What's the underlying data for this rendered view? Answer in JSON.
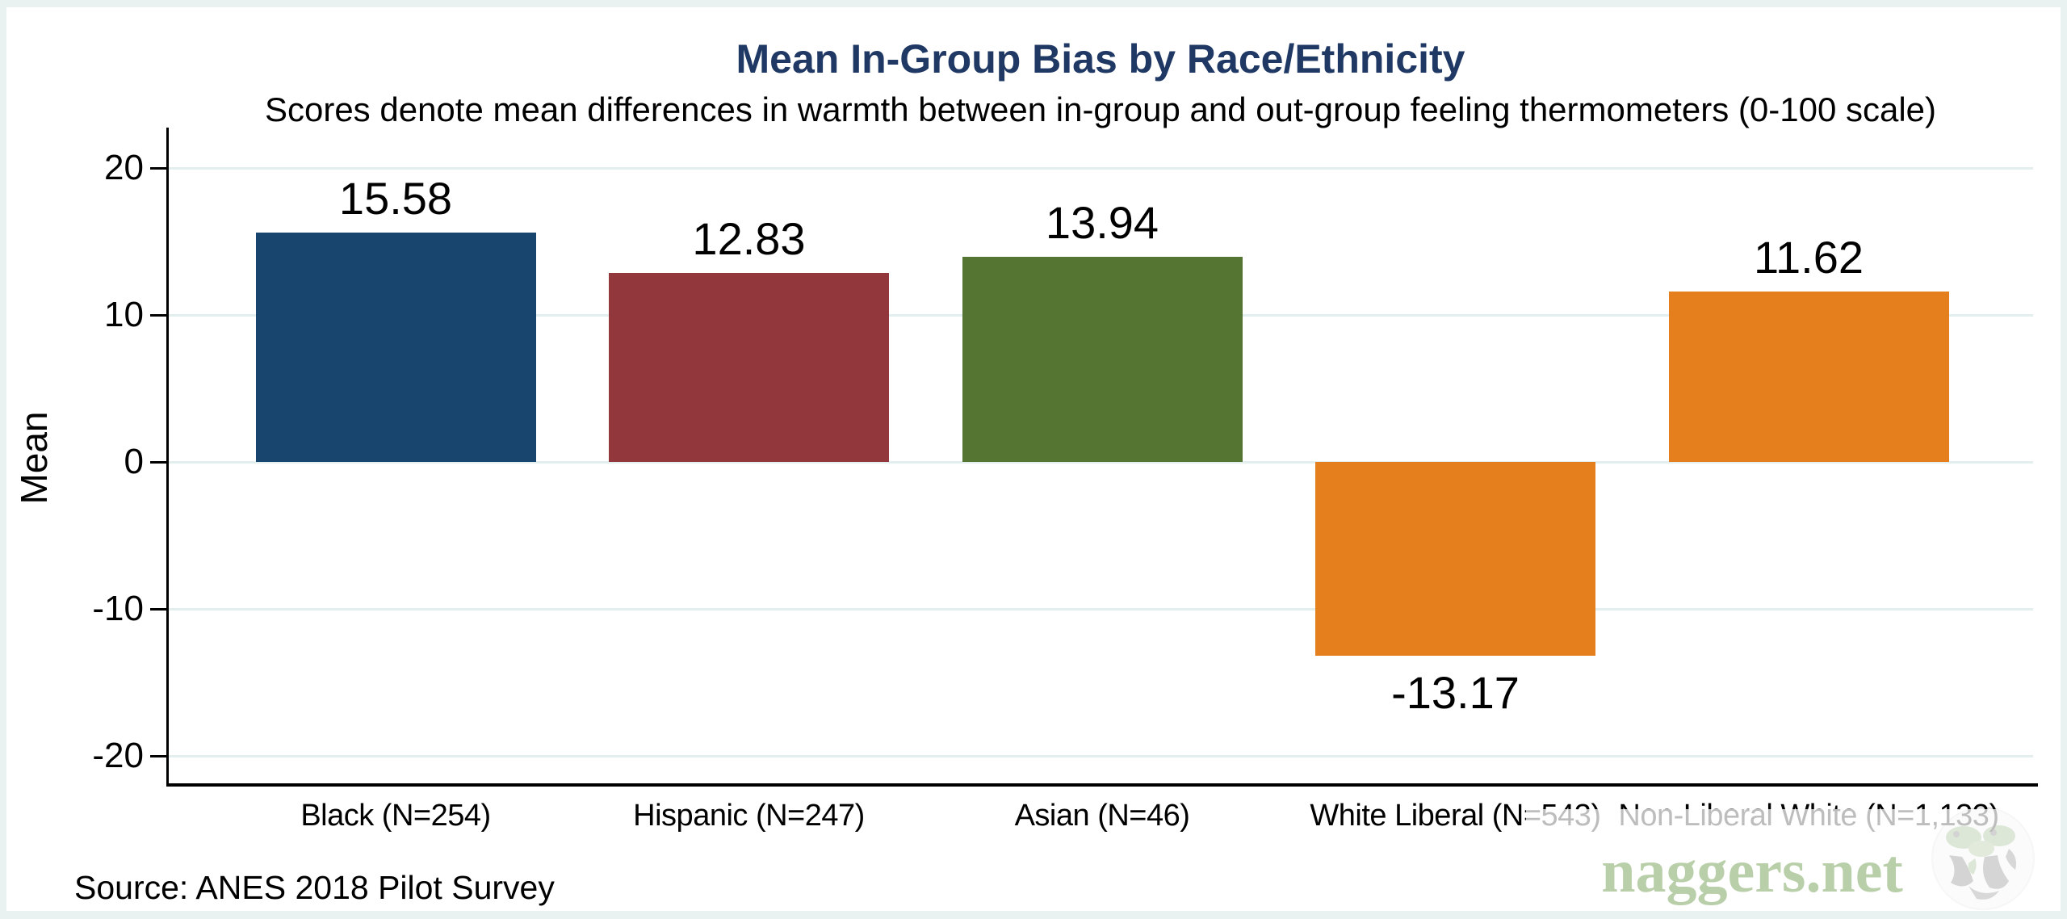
{
  "title": "Mean In-Group Bias by Race/Ethnicity",
  "subtitle": "Scores denote mean differences in warmth between in-group and out-group feeling thermometers (0-100 scale)",
  "source_note": "Source: ANES 2018 Pilot Survey",
  "watermark": {
    "text": "naggers.net",
    "logo": "naggers-globe-logo",
    "text_color": "#b9cfa9",
    "overlay_color": "rgba(255,255,255,0.74)"
  },
  "colors": {
    "background_border": "#e9f2f1",
    "plot_background": "#ffffff",
    "gridline": "#e3efee",
    "axis": "#000000",
    "title": "#1f3864",
    "text": "#000000"
  },
  "chart_data": {
    "type": "bar",
    "title": "Mean In-Group Bias by Race/Ethnicity",
    "subtitle": "Scores denote mean differences in warmth between in-group and out-group feeling thermometers (0-100 scale)",
    "xlabel": "",
    "ylabel": "Mean",
    "ylim": [
      -22,
      22
    ],
    "yticks": [
      20,
      10,
      0,
      -10,
      -20
    ],
    "ytick_labels": [
      "20",
      "10",
      "0",
      "-10",
      "-20"
    ],
    "grid": true,
    "legend_position": "none",
    "categories": [
      "Black (N=254)",
      "Hispanic (N=247)",
      "Asian (N=46)",
      "White Liberal (N=543)",
      "Non-Liberal White (N=1,133)"
    ],
    "values": [
      15.58,
      12.83,
      13.94,
      -13.17,
      11.62
    ],
    "value_labels": [
      "15.58",
      "12.83",
      "13.94",
      "-13.17",
      "11.62"
    ],
    "bar_colors": [
      "#17456e",
      "#92373c",
      "#547632",
      "#e57e1d",
      "#e57e1d"
    ],
    "annotations": [
      "Source: ANES 2018 Pilot Survey"
    ]
  }
}
